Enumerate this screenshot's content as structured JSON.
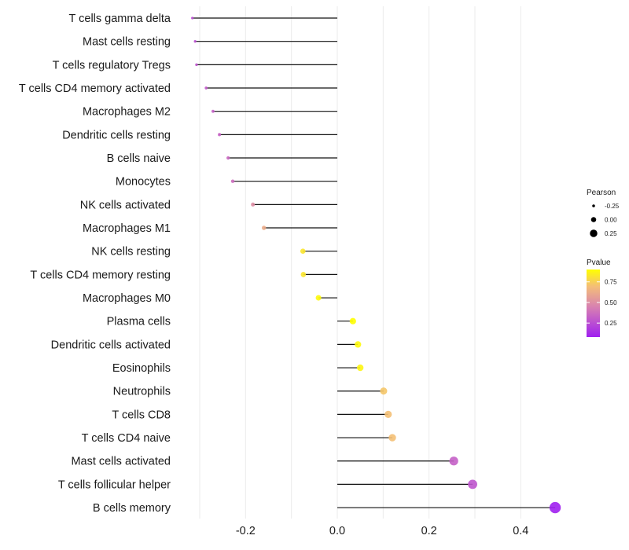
{
  "chart_data": {
    "type": "lollipop",
    "title": "",
    "xlabel": "",
    "ylabel": "",
    "xlim": [
      -0.33,
      0.49
    ],
    "x_ticks": [
      -0.2,
      0.0,
      0.2,
      0.4
    ],
    "x_tick_labels": [
      "-0.2",
      "0.0",
      "0.2",
      "0.4"
    ],
    "grid": true,
    "baseline": 0.0,
    "categories": [
      "T cells gamma delta",
      "Mast cells resting",
      "T cells regulatory  Tregs ",
      "T cells CD4 memory activated",
      "Macrophages M2",
      "Dendritic cells resting",
      "B cells naive",
      "Monocytes",
      "NK cells activated",
      "Macrophages M1",
      "NK cells resting",
      "T cells CD4 memory resting",
      "Macrophages M0",
      "Plasma cells",
      "Dendritic cells activated",
      "Eosinophils",
      "Neutrophils",
      "T cells CD8",
      "T cells CD4 naive",
      "Mast cells activated",
      "T cells follicular helper",
      "B cells memory"
    ],
    "series": [
      {
        "name": "Pearson",
        "values": [
          -0.316,
          -0.31,
          -0.307,
          -0.286,
          -0.271,
          -0.257,
          -0.238,
          -0.228,
          -0.184,
          -0.16,
          -0.075,
          -0.074,
          -0.041,
          0.034,
          0.045,
          0.05,
          0.101,
          0.111,
          0.12,
          0.254,
          0.295,
          0.475
        ]
      },
      {
        "name": "Pvalue",
        "values": [
          0.25,
          0.26,
          0.28,
          0.3,
          0.32,
          0.33,
          0.35,
          0.37,
          0.5,
          0.62,
          0.82,
          0.82,
          0.88,
          0.9,
          0.88,
          0.87,
          0.72,
          0.7,
          0.7,
          0.32,
          0.28,
          0.08
        ]
      }
    ],
    "legend": {
      "placement": "right",
      "size_legend": {
        "title": "Pearson",
        "labels": [
          "-0.25",
          "0.00",
          "0.25"
        ],
        "values": [
          -0.25,
          0.0,
          0.25
        ]
      },
      "color_legend": {
        "title": "Pvalue",
        "labels": [
          "0.75",
          "0.50",
          "0.25"
        ],
        "values": [
          0.75,
          0.5,
          0.25
        ],
        "range": [
          0.08,
          0.9
        ],
        "low_color": "#a020f0",
        "mid_color": "#d97fa8",
        "high_color": "#ffff00"
      }
    }
  }
}
